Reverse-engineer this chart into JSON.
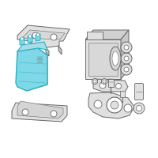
{
  "bg_color": "#ffffff",
  "line_color": "#666666",
  "highlight_stroke": "#2ab0c0",
  "highlight_fill": "#7fd8e8",
  "gray_fill": "#e0e0e0",
  "white_fill": "#ffffff",
  "figsize": [
    2.0,
    2.0
  ],
  "dpi": 100
}
